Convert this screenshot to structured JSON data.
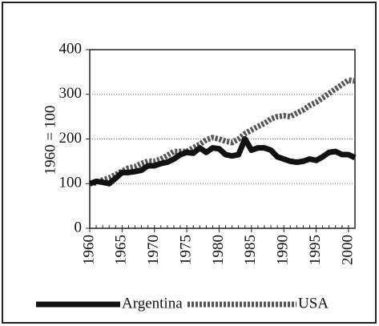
{
  "chart_data": {
    "type": "line",
    "ylabel": "1960 = 100",
    "x": [
      1960,
      1961,
      1962,
      1963,
      1964,
      1965,
      1966,
      1967,
      1968,
      1969,
      1970,
      1971,
      1972,
      1973,
      1974,
      1975,
      1976,
      1977,
      1978,
      1979,
      1980,
      1981,
      1982,
      1983,
      1984,
      1985,
      1986,
      1987,
      1988,
      1989,
      1990,
      1991,
      1992,
      1993,
      1994,
      1995,
      1996,
      1997,
      1998,
      1999,
      2000,
      2001
    ],
    "series": [
      {
        "name": "Argentina",
        "color": "#111111",
        "values": [
          100,
          105,
          103,
          100,
          112,
          125,
          125,
          127,
          130,
          140,
          140,
          145,
          148,
          155,
          165,
          170,
          168,
          180,
          170,
          180,
          178,
          165,
          162,
          165,
          200,
          175,
          180,
          180,
          175,
          160,
          155,
          150,
          148,
          150,
          155,
          152,
          160,
          170,
          172,
          165,
          165,
          158
        ]
      },
      {
        "name": "USA",
        "color": "#555555",
        "values": [
          100,
          102,
          108,
          113,
          120,
          128,
          135,
          138,
          145,
          150,
          150,
          155,
          163,
          172,
          172,
          172,
          180,
          188,
          198,
          203,
          200,
          195,
          192,
          200,
          212,
          220,
          228,
          235,
          245,
          250,
          252,
          250,
          258,
          265,
          275,
          282,
          292,
          302,
          312,
          322,
          332,
          330
        ]
      }
    ],
    "xlim": [
      1960,
      2001
    ],
    "xticks": [
      1960,
      1965,
      1970,
      1975,
      1980,
      1985,
      1990,
      1995,
      2000
    ],
    "ylim": [
      0,
      400
    ],
    "yticks": [
      0,
      100,
      200,
      300,
      400
    ],
    "grid": true,
    "legend": "bottom"
  }
}
